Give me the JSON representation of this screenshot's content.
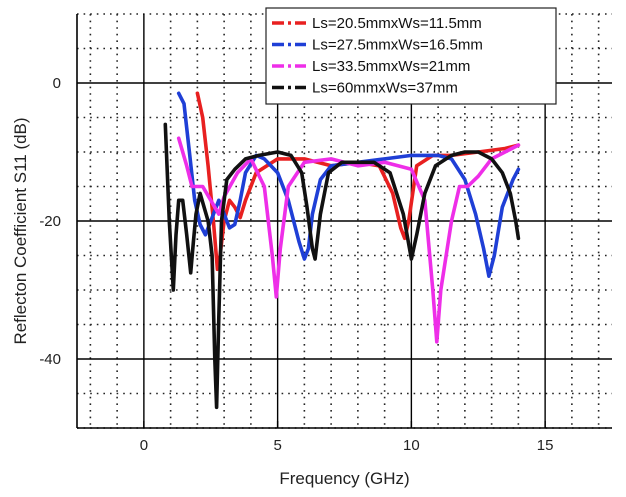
{
  "chart_data": {
    "type": "line",
    "title": "",
    "xlabel": "Frequency (GHz)",
    "ylabel": "Reflecton Coefficient S11 (dB)",
    "xlim": [
      -2.5,
      17.5
    ],
    "ylim": [
      -50,
      10
    ],
    "x_ticks": [
      0,
      5,
      10,
      15
    ],
    "y_ticks": [
      0,
      -20,
      -40
    ],
    "x_tick_labels": [
      "0",
      "5",
      "10",
      "15"
    ],
    "y_tick_labels": [
      "0",
      "-20",
      "-40"
    ],
    "grid": "dotted",
    "legend_position": "top-right",
    "series": [
      {
        "name": "Ls=20.5mmxWs=11.5mm",
        "color": "#e82020",
        "dash": "dash-dot",
        "x": [
          2.0,
          2.2,
          2.4,
          2.6,
          2.75,
          2.85,
          3.0,
          3.2,
          3.4,
          3.6,
          3.8,
          4.2,
          5.0,
          6.0,
          7.0,
          8.0,
          8.8,
          9.3,
          9.6,
          9.75,
          9.9,
          10.2,
          10.8,
          11.5,
          12.5,
          13.5,
          14.0
        ],
        "y": [
          -1.5,
          -5,
          -12,
          -20,
          -27,
          -25,
          -20,
          -17,
          -18,
          -19.5,
          -17,
          -13,
          -11,
          -11,
          -12,
          -11.5,
          -12,
          -16,
          -21,
          -22.5,
          -20,
          -12,
          -10.5,
          -10.5,
          -10,
          -9.5,
          -9
        ]
      },
      {
        "name": "Ls=27.5mmxWs=16.5mm",
        "color": "#1f3fd6",
        "dash": "dash-dot",
        "x": [
          1.3,
          1.5,
          1.7,
          1.9,
          2.1,
          2.3,
          2.5,
          2.8,
          3.2,
          3.4,
          3.6,
          3.8,
          4.2,
          4.5,
          5.0,
          5.4,
          5.8,
          6.0,
          6.15,
          6.3,
          6.6,
          7.0,
          8.0,
          9.0,
          10.0,
          11.0,
          11.5,
          12.0,
          12.4,
          12.7,
          12.9,
          13.1,
          13.4,
          13.8,
          14.0
        ],
        "y": [
          -1.5,
          -3,
          -10,
          -17,
          -20.5,
          -22,
          -20,
          -17,
          -21,
          -20.5,
          -17,
          -13,
          -10.5,
          -11,
          -13,
          -17,
          -23,
          -25.5,
          -24,
          -19,
          -14,
          -12,
          -11.5,
          -11,
          -10.5,
          -10.5,
          -11,
          -14,
          -19,
          -24,
          -28,
          -25,
          -18,
          -14,
          -12.5
        ]
      },
      {
        "name": "Ls=33.5mmxWs=21mm",
        "color": "#ee2ee8",
        "dash": "dash-dot",
        "x": [
          1.3,
          1.6,
          1.8,
          2.2,
          2.5,
          2.8,
          3.0,
          3.5,
          4.0,
          4.5,
          4.8,
          4.95,
          5.1,
          5.4,
          6.0,
          7.0,
          8.0,
          9.0,
          10.0,
          10.5,
          10.8,
          10.95,
          11.1,
          11.5,
          11.8,
          12.1,
          12.5,
          13.0,
          13.5,
          14.0
        ],
        "y": [
          -8,
          -12,
          -15,
          -15,
          -17,
          -19,
          -16.5,
          -13,
          -11,
          -15,
          -25,
          -31,
          -24,
          -15,
          -11.5,
          -11,
          -12,
          -11.5,
          -12.5,
          -17,
          -30,
          -37.5,
          -30,
          -20,
          -15,
          -15,
          -13.5,
          -11,
          -10,
          -9
        ]
      },
      {
        "name": "Ls=60mmxWs=37mm",
        "color": "#111111",
        "dash": "dash-dot",
        "x": [
          0.8,
          0.95,
          1.1,
          1.2,
          1.3,
          1.45,
          1.6,
          1.75,
          1.85,
          1.95,
          2.1,
          2.25,
          2.4,
          2.55,
          2.65,
          2.72,
          2.8,
          2.9,
          3.1,
          3.4,
          3.8,
          4.3,
          5.0,
          5.5,
          5.9,
          6.1,
          6.3,
          6.4,
          6.6,
          6.9,
          7.4,
          8.0,
          8.6,
          9.2,
          9.7,
          10.0,
          10.2,
          10.5,
          10.9,
          11.5,
          12.0,
          12.5,
          13.0,
          13.4,
          13.7,
          13.9,
          14.0
        ],
        "y": [
          -6,
          -20,
          -30,
          -22,
          -17,
          -17,
          -22,
          -27.5,
          -23,
          -19,
          -16,
          -18,
          -20,
          -25,
          -40,
          -47,
          -34,
          -20,
          -14,
          -12.5,
          -11,
          -10.5,
          -10,
          -10.5,
          -13,
          -18,
          -24,
          -25.5,
          -19,
          -13,
          -11.5,
          -11.5,
          -11.5,
          -13,
          -19,
          -25.5,
          -22,
          -16,
          -12,
          -10.5,
          -10,
          -10,
          -11,
          -13,
          -16,
          -20,
          -22.5
        ]
      }
    ]
  }
}
